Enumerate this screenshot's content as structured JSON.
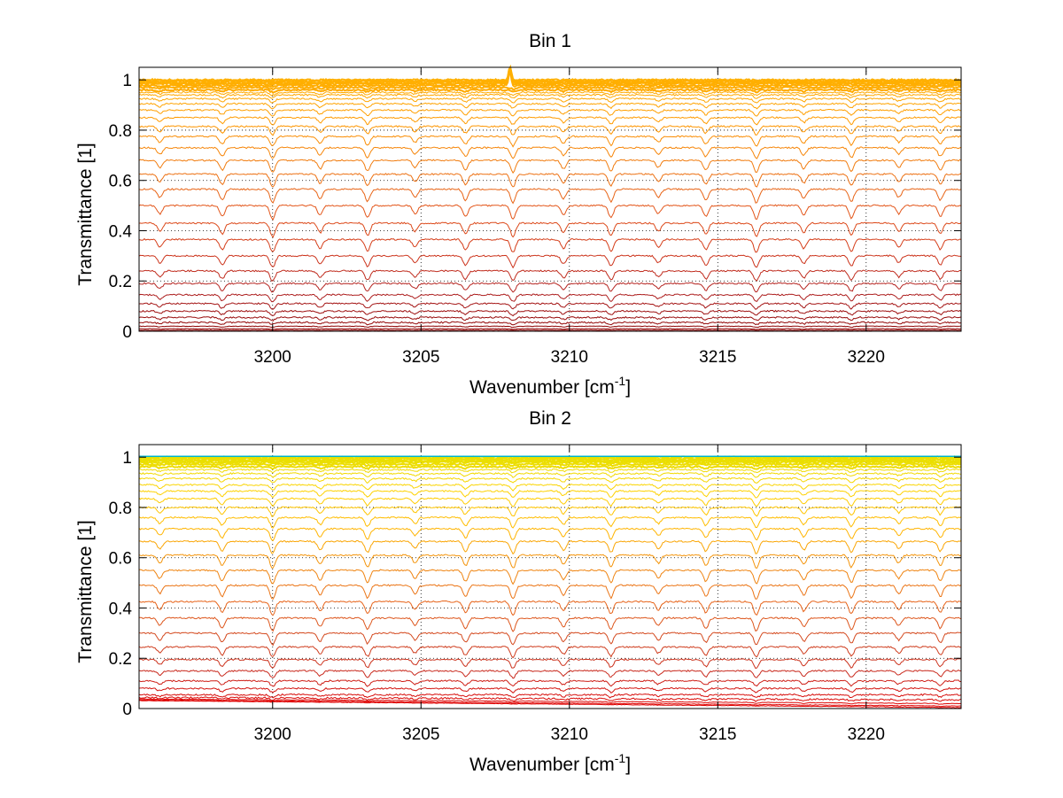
{
  "chart_data": [
    {
      "type": "line",
      "title": "Bin 1",
      "xlabel": "Wavenumber [cm",
      "xlabel_superscript": "-1",
      "xlabel_suffix": "]",
      "ylabel": "Transmittance [1]",
      "xlim": [
        3195.5,
        3223.2
      ],
      "ylim": [
        0,
        1.05
      ],
      "xticks": [
        3200,
        3205,
        3210,
        3215,
        3220
      ],
      "xtick_labels": [
        "3200",
        "3205",
        "3210",
        "3215",
        "3220"
      ],
      "yticks": [
        0,
        0.2,
        0.4,
        0.6,
        0.8,
        1
      ],
      "ytick_labels": [
        "0",
        "0.2",
        "0.4",
        "0.6",
        "0.8",
        "1"
      ],
      "grid": true,
      "colormap": [
        "#8b0000",
        "#b22222",
        "#d2381a",
        "#e3561a",
        "#f07a10",
        "#ff9900",
        "#ffb000"
      ],
      "absorption_lines": [
        3196.2,
        3198.3,
        3200.0,
        3201.6,
        3203.2,
        3204.8,
        3206.5,
        3208.1,
        3209.8,
        3211.4,
        3213.0,
        3214.6,
        3216.3,
        3217.9,
        3219.5,
        3221.1,
        3222.5
      ],
      "series_baselines": [
        1.0,
        0.995,
        0.99,
        0.985,
        0.978,
        0.97,
        0.96,
        0.95,
        0.94,
        0.925,
        0.905,
        0.88,
        0.85,
        0.815,
        0.775,
        0.73,
        0.68,
        0.625,
        0.565,
        0.5,
        0.43,
        0.365,
        0.3,
        0.24,
        0.19,
        0.145,
        0.11,
        0.08,
        0.055,
        0.035,
        0.02,
        0.01,
        0.004
      ],
      "spike_x": 3208.0
    },
    {
      "type": "line",
      "title": "Bin 2",
      "xlabel": "Wavenumber [cm",
      "xlabel_superscript": "-1",
      "xlabel_suffix": "]",
      "ylabel": "Transmittance [1]",
      "xlim": [
        3195.5,
        3223.2
      ],
      "ylim": [
        0,
        1.05
      ],
      "xticks": [
        3200,
        3205,
        3210,
        3215,
        3220
      ],
      "xtick_labels": [
        "3200",
        "3205",
        "3210",
        "3215",
        "3220"
      ],
      "yticks": [
        0,
        0.2,
        0.4,
        0.6,
        0.8,
        1
      ],
      "ytick_labels": [
        "0",
        "0.2",
        "0.4",
        "0.6",
        "0.8",
        "1"
      ],
      "grid": true,
      "colormap": [
        "#e00000",
        "#c8281e",
        "#d2461e",
        "#e8651a",
        "#f08a10",
        "#ffb400",
        "#ffd000",
        "#e8e000"
      ],
      "top_line_color": "#00b4c8",
      "absorption_lines": [
        3196.2,
        3198.3,
        3200.0,
        3201.6,
        3203.2,
        3204.8,
        3206.5,
        3208.1,
        3209.8,
        3211.4,
        3213.0,
        3214.6,
        3216.3,
        3217.9,
        3219.5,
        3221.1,
        3222.5
      ],
      "series_baselines": [
        1.0,
        0.995,
        0.99,
        0.985,
        0.98,
        0.972,
        0.962,
        0.95,
        0.935,
        0.915,
        0.89,
        0.865,
        0.835,
        0.8,
        0.76,
        0.715,
        0.665,
        0.61,
        0.55,
        0.49,
        0.425,
        0.36,
        0.3,
        0.245,
        0.195,
        0.15,
        0.11,
        0.08,
        0.055,
        0.035,
        0.02,
        0.01,
        0.004
      ]
    }
  ]
}
